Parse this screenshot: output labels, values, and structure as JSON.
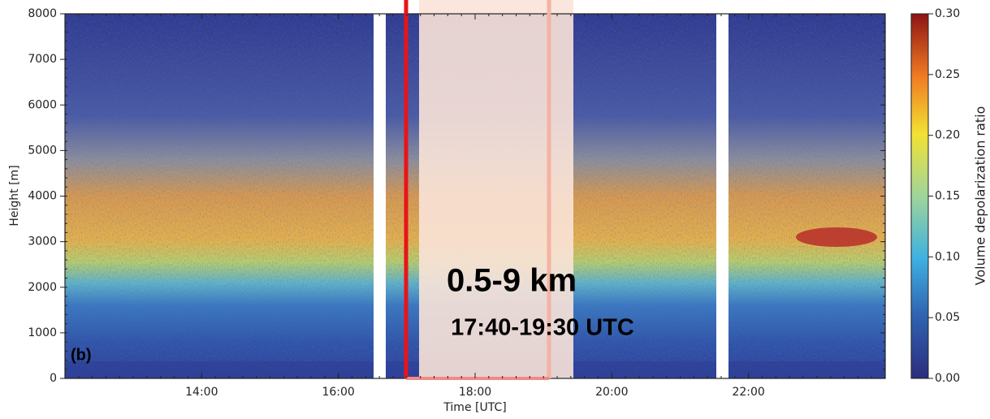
{
  "chart_data": {
    "type": "heatmap",
    "xlabel": "Time [UTC]",
    "ylabel": "Height [m]",
    "xlim": [
      12,
      24
    ],
    "xticks": [
      {
        "value": 14,
        "label": "14:00"
      },
      {
        "value": 16,
        "label": "16:00"
      },
      {
        "value": 18,
        "label": "18:00"
      },
      {
        "value": 20,
        "label": "20:00"
      },
      {
        "value": 22,
        "label": "22:00"
      }
    ],
    "ylim": [
      0,
      8000
    ],
    "yticks": [
      0,
      1000,
      2000,
      3000,
      4000,
      5000,
      6000,
      7000,
      8000
    ],
    "colorbar": {
      "label": "Volume depolarization ratio",
      "lim": [
        0,
        0.3
      ],
      "ticks": [
        {
          "value": 0,
          "label": "0.00"
        },
        {
          "value": 0.05,
          "label": "0.05"
        },
        {
          "value": 0.1,
          "label": "0.10"
        },
        {
          "value": 0.15,
          "label": "0.15"
        },
        {
          "value": 0.2,
          "label": "0.20"
        },
        {
          "value": 0.25,
          "label": "0.25"
        },
        {
          "value": 0.3,
          "label": "0.30"
        }
      ]
    },
    "annotations": [
      "0.5-9 km",
      "17:40-19:30 UTC",
      "(b)"
    ]
  }
}
